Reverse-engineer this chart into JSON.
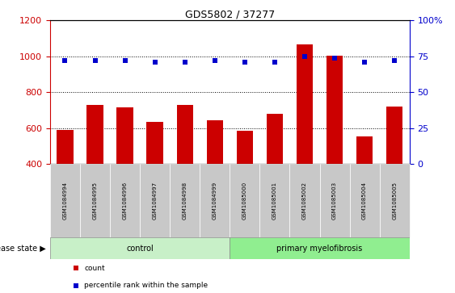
{
  "title": "GDS5802 / 37277",
  "samples": [
    "GSM1084994",
    "GSM1084995",
    "GSM1084996",
    "GSM1084997",
    "GSM1084998",
    "GSM1084999",
    "GSM1085000",
    "GSM1085001",
    "GSM1085002",
    "GSM1085003",
    "GSM1085004",
    "GSM1085005"
  ],
  "counts": [
    590,
    730,
    715,
    635,
    730,
    645,
    585,
    680,
    1065,
    1005,
    555,
    720
  ],
  "percentile_ranks": [
    72,
    72,
    72,
    71,
    71,
    72,
    71,
    71,
    75,
    74,
    71,
    72
  ],
  "ylim_left": [
    400,
    1200
  ],
  "ylim_right": [
    0,
    100
  ],
  "yticks_left": [
    400,
    600,
    800,
    1000,
    1200
  ],
  "yticks_right": [
    0,
    25,
    50,
    75,
    100
  ],
  "bar_color": "#cc0000",
  "dot_color": "#0000cc",
  "left_axis_color": "#cc0000",
  "right_axis_color": "#0000cc",
  "tick_bg_color": "#c8c8c8",
  "control_color": "#c8f0c8",
  "myelofibrosis_color": "#90ee90",
  "control_label": "control",
  "myelofibrosis_label": "primary myelofibrosis",
  "control_range": [
    0,
    5
  ],
  "myelofibrosis_range": [
    6,
    11
  ],
  "disease_state_label": "disease state",
  "legend_items": [
    {
      "label": "count",
      "color": "#cc0000"
    },
    {
      "label": "percentile rank within the sample",
      "color": "#0000cc"
    }
  ],
  "bar_bottom": 400,
  "bar_width": 0.55,
  "dot_size": 5
}
